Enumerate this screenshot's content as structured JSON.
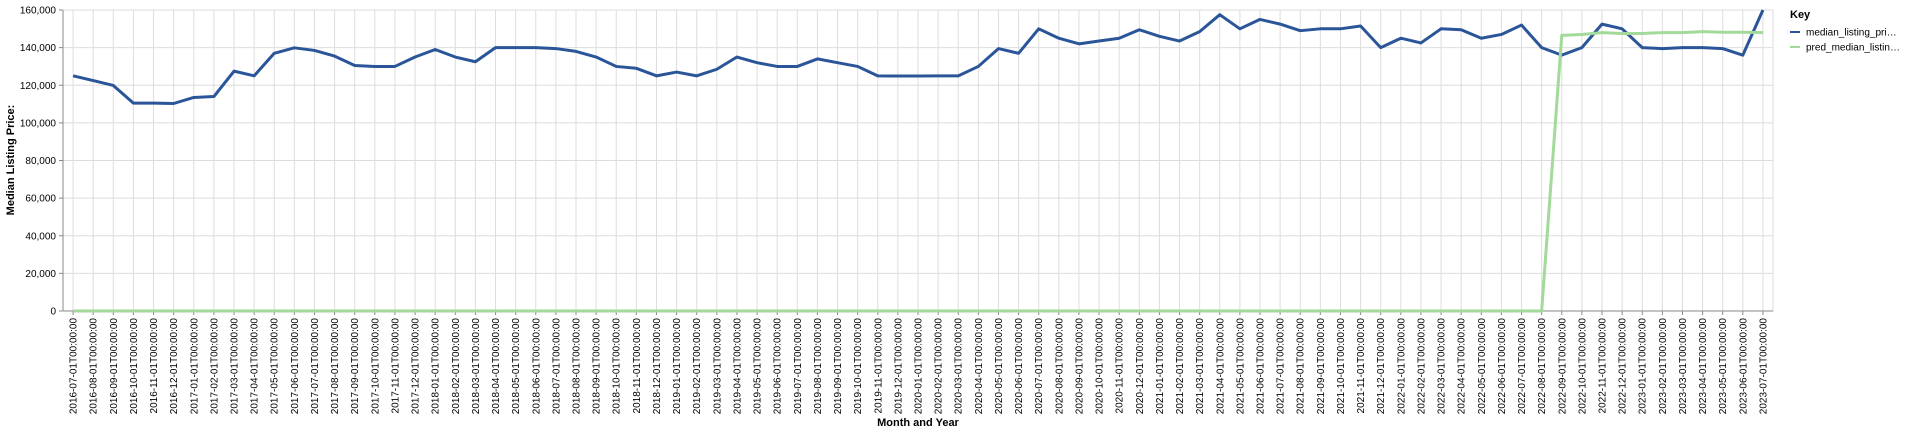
{
  "chart_data": {
    "type": "line",
    "x_label": "Month and Year",
    "y_label": "Median Listing Price:",
    "legend_title": "Key",
    "legend_position": "right",
    "grid": true,
    "categories": [
      "2016-07-01T00:00:00",
      "2016-08-01T00:00:00",
      "2016-09-01T00:00:00",
      "2016-10-01T00:00:00",
      "2016-11-01T00:00:00",
      "2016-12-01T00:00:00",
      "2017-01-01T00:00:00",
      "2017-02-01T00:00:00",
      "2017-03-01T00:00:00",
      "2017-04-01T00:00:00",
      "2017-05-01T00:00:00",
      "2017-06-01T00:00:00",
      "2017-07-01T00:00:00",
      "2017-08-01T00:00:00",
      "2017-09-01T00:00:00",
      "2017-10-01T00:00:00",
      "2017-11-01T00:00:00",
      "2017-12-01T00:00:00",
      "2018-01-01T00:00:00",
      "2018-02-01T00:00:00",
      "2018-03-01T00:00:00",
      "2018-04-01T00:00:00",
      "2018-05-01T00:00:00",
      "2018-06-01T00:00:00",
      "2018-07-01T00:00:00",
      "2018-08-01T00:00:00",
      "2018-09-01T00:00:00",
      "2018-10-01T00:00:00",
      "2018-11-01T00:00:00",
      "2018-12-01T00:00:00",
      "2019-01-01T00:00:00",
      "2019-02-01T00:00:00",
      "2019-03-01T00:00:00",
      "2019-04-01T00:00:00",
      "2019-05-01T00:00:00",
      "2019-06-01T00:00:00",
      "2019-07-01T00:00:00",
      "2019-08-01T00:00:00",
      "2019-09-01T00:00:00",
      "2019-10-01T00:00:00",
      "2019-11-01T00:00:00",
      "2019-12-01T00:00:00",
      "2020-01-01T00:00:00",
      "2020-02-01T00:00:00",
      "2020-03-01T00:00:00",
      "2020-04-01T00:00:00",
      "2020-05-01T00:00:00",
      "2020-06-01T00:00:00",
      "2020-07-01T00:00:00",
      "2020-08-01T00:00:00",
      "2020-09-01T00:00:00",
      "2020-10-01T00:00:00",
      "2020-11-01T00:00:00",
      "2020-12-01T00:00:00",
      "2021-01-01T00:00:00",
      "2021-02-01T00:00:00",
      "2021-03-01T00:00:00",
      "2021-04-01T00:00:00",
      "2021-05-01T00:00:00",
      "2021-06-01T00:00:00",
      "2021-07-01T00:00:00",
      "2021-08-01T00:00:00",
      "2021-09-01T00:00:00",
      "2021-10-01T00:00:00",
      "2021-11-01T00:00:00",
      "2021-12-01T00:00:00",
      "2022-01-01T00:00:00",
      "2022-02-01T00:00:00",
      "2022-03-01T00:00:00",
      "2022-04-01T00:00:00",
      "2022-05-01T00:00:00",
      "2022-06-01T00:00:00",
      "2022-07-01T00:00:00",
      "2022-08-01T00:00:00",
      "2022-09-01T00:00:00",
      "2022-10-01T00:00:00",
      "2022-11-01T00:00:00",
      "2022-12-01T00:00:00",
      "2023-01-01T00:00:00",
      "2023-02-01T00:00:00",
      "2023-03-01T00:00:00",
      "2023-04-01T00:00:00",
      "2023-05-01T00:00:00",
      "2023-06-01T00:00:00",
      "2023-07-01T00:00:00"
    ],
    "series": [
      {
        "name": "median_listing_pri…",
        "color": "#2a5599",
        "values": [
          125000,
          122500,
          119900,
          110500,
          110500,
          110300,
          113500,
          114000,
          127500,
          125000,
          137000,
          139900,
          138500,
          135500,
          130500,
          130000,
          130000,
          135000,
          139000,
          135000,
          132500,
          140000,
          140000,
          140000,
          139500,
          138000,
          135000,
          130000,
          129000,
          125000,
          127000,
          125000,
          128500,
          135000,
          132000,
          130000,
          130000,
          134000,
          132000,
          130000,
          125000,
          124900,
          124900,
          125000,
          125000,
          130000,
          139500,
          137000,
          150000,
          145000,
          142000,
          143500,
          145000,
          149500,
          146000,
          143500,
          148500,
          157500,
          150000,
          155000,
          152500,
          149000,
          150000,
          150000,
          151500,
          140000,
          145000,
          142500,
          150000,
          149500,
          145000,
          147000,
          152000,
          140000,
          136000,
          140000,
          152500,
          150000,
          140000,
          139500,
          140000,
          140000,
          139500,
          136000,
          160000
        ]
      },
      {
        "name": "pred_median_listin…",
        "color": "#a3d99a",
        "values": [
          0,
          0,
          0,
          0,
          0,
          0,
          0,
          0,
          0,
          0,
          0,
          0,
          0,
          0,
          0,
          0,
          0,
          0,
          0,
          0,
          0,
          0,
          0,
          0,
          0,
          0,
          0,
          0,
          0,
          0,
          0,
          0,
          0,
          0,
          0,
          0,
          0,
          0,
          0,
          0,
          0,
          0,
          0,
          0,
          0,
          0,
          0,
          0,
          0,
          0,
          0,
          0,
          0,
          0,
          0,
          0,
          0,
          0,
          0,
          0,
          0,
          0,
          0,
          0,
          0,
          0,
          0,
          0,
          0,
          0,
          0,
          0,
          0,
          0,
          146500,
          147000,
          148000,
          147500,
          147500,
          148000,
          148000,
          148500,
          148200,
          148200,
          148000
        ]
      }
    ],
    "ylim": [
      0,
      160000
    ],
    "yticks": [
      0,
      {
        "value": 20000,
        "label": "20,000"
      },
      {
        "value": 40000,
        "label": "40,000"
      },
      {
        "value": 60000,
        "label": "60,000"
      },
      {
        "value": 80000,
        "label": "80,000"
      },
      {
        "value": 100000,
        "label": "100,000"
      },
      {
        "value": 120000,
        "label": "120,000"
      },
      {
        "value": 140000,
        "label": "140,000"
      },
      {
        "value": 160000,
        "label": "160,000"
      }
    ]
  }
}
